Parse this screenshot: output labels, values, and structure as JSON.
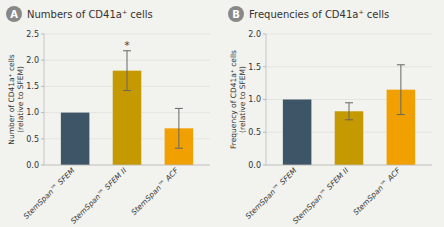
{
  "chart_data": [
    {
      "type": "bar",
      "title": "Numbers of CD41a⁺ cells",
      "label": "A",
      "ylabel": "Number of CD41a⁺ cells\n(relative to SFEM)",
      "categories": [
        "StemSpan™ SFEM",
        "StemSpan™ SFEM II",
        "StemSpan™ ACF"
      ],
      "values": [
        1.0,
        1.8,
        0.7
      ],
      "errors": [
        0.0,
        0.38,
        0.38
      ],
      "colors": [
        "#3d5566",
        "#c49a00",
        "#f0a000"
      ],
      "ylim": [
        0,
        2.5
      ],
      "yticks": [
        {
          "value": 0,
          "label": "0.0"
        },
        0.5,
        {
          "value": 1,
          "label": "1.0"
        },
        1.5,
        {
          "value": 2,
          "label": "2.0"
        },
        2.5
      ],
      "annotations": [
        {
          "text": "*",
          "x": "StemSpan™ SFEM II"
        }
      ]
    },
    {
      "type": "bar",
      "title": "Frequencies of CD41a⁺ cells",
      "label": "B",
      "ylabel": "Frequency of CD41a⁺ cells\n(relative to SFEM)",
      "categories": [
        "StemSpan™ SFEM",
        "StemSpan™ SFEM II",
        "StemSpan™ ACF"
      ],
      "values": [
        1.0,
        0.82,
        1.15
      ],
      "errors": [
        0.0,
        0.13,
        0.38
      ],
      "colors": [
        "#3d5566",
        "#c49a00",
        "#f0a000"
      ],
      "ylim": [
        0,
        2.0
      ],
      "yticks": [
        {
          "value": 0,
          "label": "0.0"
        },
        0.5,
        {
          "value": 1,
          "label": "1.0"
        },
        1.5,
        {
          "value": 2,
          "label": "2.0"
        }
      ]
    }
  ]
}
